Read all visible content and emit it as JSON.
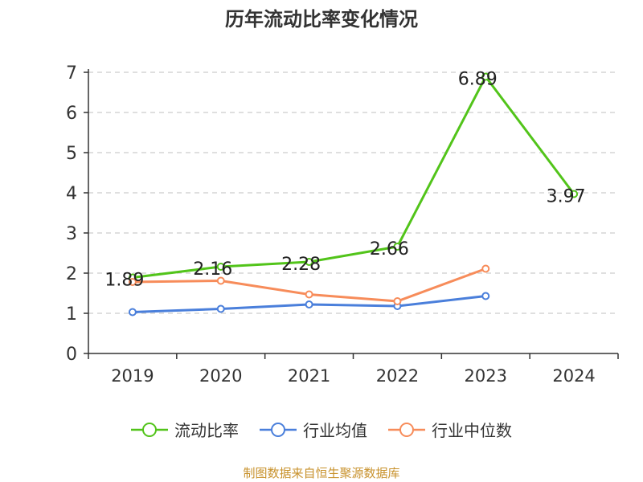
{
  "source_note": "制图数据来自恒生聚源数据库",
  "chart_data": {
    "type": "line",
    "title": "历年流动比率变化情况",
    "categories": [
      "2019",
      "2020",
      "2021",
      "2022",
      "2023",
      "2024"
    ],
    "ylim": [
      0,
      7
    ],
    "yticks": [
      0,
      1,
      2,
      3,
      4,
      5,
      6,
      7
    ],
    "grid": true,
    "legend_position": "bottom",
    "series": [
      {
        "name": "流动比率",
        "color": "#52c41a",
        "values": [
          1.89,
          2.16,
          2.28,
          2.66,
          6.89,
          3.97
        ],
        "labels": [
          "1.89",
          "2.16",
          "2.28",
          "2.66",
          "6.89",
          "3.97"
        ]
      },
      {
        "name": "行业均值",
        "color": "#4a7fdb",
        "values": [
          1.03,
          1.11,
          1.22,
          1.18,
          1.43,
          null
        ]
      },
      {
        "name": "行业中位数",
        "color": "#f78c5a",
        "values": [
          1.78,
          1.81,
          1.47,
          1.3,
          2.11,
          null
        ]
      }
    ]
  }
}
